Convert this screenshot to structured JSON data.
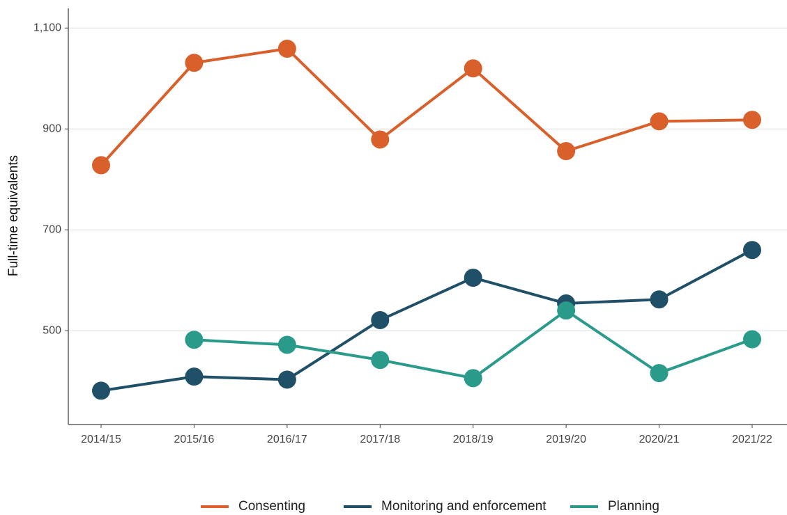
{
  "chart_data": {
    "type": "line",
    "y_label": "Full-time equivalents",
    "categories": [
      "2014/15",
      "2015/16",
      "2016/17",
      "2017/18",
      "2018/19",
      "2019/20",
      "2020/21",
      "2021/22"
    ],
    "series": [
      {
        "name": "Consenting",
        "color": "#d95f2b",
        "values": [
          828,
          1031,
          1059,
          879,
          1020,
          856,
          915,
          918
        ]
      },
      {
        "name": "Monitoring and enforcement",
        "color": "#1f5068",
        "values": [
          381,
          409,
          403,
          521,
          605,
          554,
          562,
          660
        ]
      },
      {
        "name": "Planning",
        "color": "#2a9a8a",
        "values": [
          null,
          482,
          472,
          442,
          406,
          540,
          416,
          483
        ]
      }
    ],
    "ylim": [
      314,
      1139
    ],
    "yticks": [
      500,
      700,
      900,
      {
        "value": 1100,
        "label": "1,100"
      }
    ],
    "grid": true,
    "legend": "bottom"
  }
}
